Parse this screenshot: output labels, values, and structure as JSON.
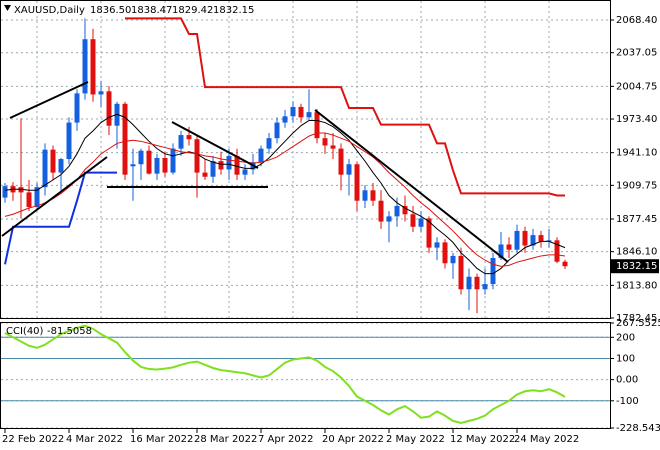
{
  "chart_data": [
    {
      "type": "candlestick",
      "title": "XAUUSD,Daily",
      "header_values": [
        {
          "value": 1836.5,
          "label": "1836.50"
        },
        1838.47,
        1829.42,
        1832.15
      ],
      "categories": [
        "22 Feb 2022",
        null,
        null,
        null,
        null,
        null,
        null,
        null,
        "4 Mar 2022",
        null,
        null,
        null,
        null,
        null,
        null,
        null,
        "16 Mar 2022",
        null,
        null,
        null,
        null,
        null,
        null,
        null,
        "28 Mar 2022",
        null,
        null,
        null,
        null,
        null,
        null,
        null,
        "7 Apr 2022",
        null,
        null,
        null,
        null,
        null,
        null,
        null,
        "20 Apr 2022",
        null,
        null,
        null,
        null,
        null,
        null,
        null,
        "2 May 2022",
        null,
        null,
        null,
        null,
        null,
        null,
        null,
        "12 May 2022",
        null,
        null,
        null,
        null,
        null,
        null,
        null,
        "24 May 2022",
        null,
        null,
        null,
        null,
        null,
        null
      ],
      "open": [
        1898,
        1909,
        1908,
        1903,
        1889,
        1908,
        1944,
        1922,
        1935,
        1970,
        1998,
        2050,
        1997,
        2000,
        1967,
        1988,
        1928,
        1930,
        1943,
        1921,
        1936,
        1922,
        1945,
        1958,
        1954,
        1922,
        1918,
        1933,
        1925,
        1938,
        1920,
        1925,
        1932,
        1945,
        1955,
        1970,
        1976,
        1985,
        1975,
        1980,
        1955,
        1948,
        1945,
        1920,
        1930,
        1895,
        1905,
        1895,
        1875,
        1880,
        1890,
        1882,
        1870,
        1878,
        1850,
        1855,
        1835,
        1842,
        1810,
        1822,
        1810,
        1815,
        1840,
        1853,
        1848,
        1866,
        1852,
        1862,
        1856,
        1857,
        1836.5
      ],
      "high": [
        1912,
        1913,
        1974,
        1915,
        1912,
        1950,
        1948,
        1936,
        1975,
        2002,
        2070,
        2060,
        2010,
        2005,
        1990,
        1990,
        1945,
        1945,
        1948,
        1940,
        1942,
        1950,
        1962,
        1966,
        1958,
        1935,
        1938,
        1942,
        1945,
        1945,
        1930,
        1940,
        1948,
        1960,
        1975,
        1982,
        1990,
        1988,
        2002,
        1983,
        1960,
        1960,
        1950,
        1935,
        1932,
        1910,
        1912,
        1905,
        1885,
        1898,
        1900,
        1890,
        1885,
        1880,
        1860,
        1858,
        1845,
        1850,
        1830,
        1825,
        1830,
        1845,
        1865,
        1860,
        1872,
        1870,
        1868,
        1866,
        1868,
        1860,
        1838.47
      ],
      "low": [
        1893,
        1895,
        1878,
        1885,
        1887,
        1900,
        1915,
        1905,
        1930,
        1962,
        1992,
        1990,
        1985,
        1958,
        1945,
        1915,
        1895,
        1915,
        1920,
        1915,
        1918,
        1920,
        1938,
        1948,
        1898,
        1915,
        1912,
        1920,
        1915,
        1915,
        1915,
        1920,
        1928,
        1940,
        1950,
        1965,
        1970,
        1970,
        1972,
        1950,
        1940,
        1935,
        1905,
        1900,
        1885,
        1888,
        1890,
        1868,
        1855,
        1870,
        1875,
        1865,
        1865,
        1845,
        1838,
        1830,
        1820,
        1805,
        1790,
        1787,
        1805,
        1810,
        1838,
        1840,
        1845,
        1845,
        1848,
        1850,
        1850,
        1835,
        1829.42
      ],
      "close": [
        1909,
        1903,
        1903,
        1889,
        1908,
        1944,
        1922,
        1935,
        1970,
        1998,
        2050,
        1997,
        2000,
        1967,
        1988,
        1920,
        1930,
        1943,
        1921,
        1936,
        1922,
        1945,
        1958,
        1954,
        1922,
        1918,
        1933,
        1925,
        1938,
        1920,
        1925,
        1932,
        1945,
        1955,
        1970,
        1976,
        1985,
        1975,
        1980,
        1955,
        1948,
        1945,
        1920,
        1930,
        1895,
        1905,
        1895,
        1875,
        1880,
        1890,
        1882,
        1870,
        1878,
        1850,
        1855,
        1835,
        1842,
        1810,
        1822,
        1810,
        1815,
        1840,
        1853,
        1848,
        1866,
        1852,
        1862,
        1856,
        1857,
        1836.5,
        1832.15
      ],
      "up_color": "#1560e0",
      "down_color": "#e01010",
      "overlays": [
        {
          "color": "#000000",
          "width": 1,
          "values": [
            1905,
            1906,
            1906,
            1905,
            1905,
            1910,
            1915,
            1920,
            1928,
            1940,
            1955,
            1962,
            1970,
            1975,
            1978,
            1975,
            1968,
            1960,
            1952,
            1945,
            1940,
            1938,
            1940,
            1942,
            1940,
            1935,
            1932,
            1930,
            1930,
            1928,
            1926,
            1926,
            1930,
            1936,
            1944,
            1952,
            1960,
            1967,
            1972,
            1972,
            1970,
            1966,
            1960,
            1953,
            1943,
            1933,
            1922,
            1912,
            1900,
            1893,
            1888,
            1884,
            1880,
            1875,
            1868,
            1862,
            1855,
            1845,
            1838,
            1830,
            1825,
            1825,
            1830,
            1838,
            1844,
            1850,
            1853,
            1856,
            1856,
            1853,
            1850
          ]
        },
        {
          "color": "#e01010",
          "width": 1,
          "values": [
            1880,
            1882,
            1885,
            1888,
            1890,
            1893,
            1897,
            1902,
            1908,
            1915,
            1925,
            1932,
            1940,
            1945,
            1950,
            1952,
            1953,
            1952,
            1950,
            1948,
            1946,
            1944,
            1942,
            1941,
            1940,
            1938,
            1937,
            1935,
            1934,
            1933,
            1932,
            1931,
            1932,
            1934,
            1937,
            1942,
            1947,
            1952,
            1957,
            1960,
            1960,
            1958,
            1955,
            1952,
            1947,
            1942,
            1937,
            1930,
            1922,
            1915,
            1908,
            1900,
            1893,
            1887,
            1880,
            1873,
            1866,
            1858,
            1850,
            1843,
            1838,
            1834,
            1832,
            1833,
            1836,
            1838,
            1840,
            1842,
            1843,
            1843,
            1842
          ]
        },
        {
          "color": "#e01010",
          "width": 2,
          "values": [
            null,
            null,
            null,
            null,
            null,
            null,
            null,
            null,
            null,
            null,
            null,
            null,
            null,
            null,
            null,
            2070,
            2070,
            2070,
            2070,
            2070,
            2070,
            2070,
            2070,
            2055,
            2055,
            2004,
            2004,
            2004,
            2004,
            2004,
            2004,
            2004,
            2004,
            2004,
            2004,
            2004,
            2004,
            2004,
            2004,
            2004,
            2004,
            2004,
            2004,
            1984,
            1984,
            1984,
            1984,
            1968,
            1968,
            1968,
            1968,
            1968,
            1968,
            1968,
            1950,
            1950,
            1924,
            1902,
            1902,
            1902,
            1902,
            1902,
            1902,
            1902,
            1902,
            1902,
            1902,
            1902,
            1902,
            1900,
            1900
          ]
        },
        {
          "color": "#1030e0",
          "width": 2,
          "values": [
            1834,
            1870,
            1870,
            1870,
            1870,
            1870,
            1870,
            1870,
            1870,
            1895,
            1922,
            1922,
            1922,
            1922,
            1922,
            null,
            null,
            null,
            null,
            null,
            null,
            null,
            null,
            null,
            null,
            null,
            null,
            null,
            null,
            null,
            null,
            null,
            null,
            null,
            null,
            null,
            null,
            null,
            null,
            null,
            null,
            null,
            null,
            null,
            null,
            null,
            null,
            null,
            null,
            null,
            null,
            null,
            null,
            null,
            null,
            null,
            null,
            null,
            null,
            null,
            null,
            null,
            null,
            null,
            null,
            null,
            null,
            null,
            null,
            null,
            null
          ]
        }
      ],
      "ylim": [
        1782.45,
        2085.7
      ],
      "yticks": [
        {
          "value": 2068.4,
          "label": "2068.40"
        },
        2037.05,
        2004.75,
        {
          "value": 1973.4,
          "label": "1973.40"
        },
        {
          "value": 1941.1,
          "label": "1941.10"
        },
        1909.75,
        1877.45,
        {
          "value": 1846.1,
          "label": "1846.10"
        },
        {
          "value": 1813.8,
          "label": "1813.80"
        },
        1782.45
      ],
      "current_price": 1832.15,
      "grid": true
    },
    {
      "type": "line",
      "title": "CCI(40)",
      "current_value": -81.5058,
      "color": "#80e020",
      "values": [
        220,
        200,
        180,
        160,
        150,
        165,
        190,
        215,
        230,
        245,
        255,
        240,
        215,
        195,
        175,
        130,
        90,
        60,
        50,
        48,
        52,
        58,
        70,
        80,
        85,
        70,
        55,
        45,
        40,
        35,
        30,
        20,
        10,
        20,
        50,
        80,
        95,
        100,
        105,
        90,
        60,
        40,
        10,
        -30,
        -80,
        -100,
        -120,
        -145,
        -165,
        -140,
        -125,
        -150,
        -180,
        -175,
        -150,
        -170,
        -195,
        -205,
        -195,
        -185,
        -170,
        -140,
        -120,
        -100,
        -70,
        -55,
        -50,
        -55,
        -45,
        -60,
        -81.5058
      ],
      "ylim": [
        -228.5432,
        267.5525
      ],
      "yticks": [
        267.5525,
        200,
        100,
        {
          "value": 0,
          "label": "0.00"
        },
        -100,
        -228.5432
      ],
      "levels": [
        200,
        100,
        -100
      ],
      "level_color": "#4a8ca8"
    }
  ]
}
